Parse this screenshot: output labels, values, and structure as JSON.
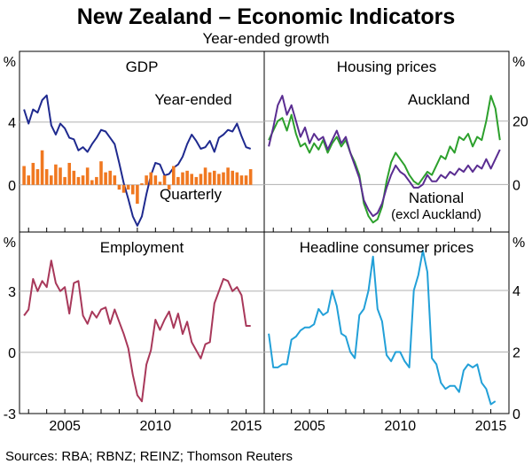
{
  "title": "New Zealand – Economic Indicators",
  "subtitle": "Year-ended growth",
  "source": "Sources:   RBA; RBNZ; REINZ; Thomson Reuters",
  "colors": {
    "navy": "#1f2a8f",
    "orange": "#f07820",
    "green": "#2ca02c",
    "purple": "#5a2d91",
    "maroon": "#a8385a",
    "cyan": "#22a0d8",
    "grid": "#b0b0b0"
  },
  "chart_data": [
    {
      "type": "line",
      "panel": "GDP",
      "title": "GDP",
      "xticks": [
        "2005",
        "2010",
        "2015"
      ],
      "xrange": [
        2002.5,
        2016.0
      ],
      "ylabel_left": "%",
      "yticks_left": [
        "4",
        "0"
      ],
      "ylim": [
        -3.0,
        8.5
      ],
      "series": [
        {
          "name": "Year-ended",
          "color": "#1f2a8f",
          "x": [
            2002.75,
            2003.0,
            2003.25,
            2003.5,
            2003.75,
            2004.0,
            2004.25,
            2004.5,
            2004.75,
            2005.0,
            2005.25,
            2005.5,
            2005.75,
            2006.0,
            2006.25,
            2006.5,
            2006.75,
            2007.0,
            2007.25,
            2007.5,
            2007.75,
            2008.0,
            2008.25,
            2008.5,
            2008.75,
            2009.0,
            2009.25,
            2009.5,
            2009.75,
            2010.0,
            2010.25,
            2010.5,
            2010.75,
            2011.0,
            2011.25,
            2011.5,
            2011.75,
            2012.0,
            2012.25,
            2012.5,
            2012.75,
            2013.0,
            2013.25,
            2013.5,
            2013.75,
            2014.0,
            2014.25,
            2014.5,
            2014.75,
            2015.0,
            2015.25
          ],
          "y": [
            4.8,
            3.9,
            4.8,
            4.6,
            5.4,
            5.7,
            3.8,
            3.2,
            3.9,
            3.6,
            3.0,
            2.9,
            2.2,
            2.4,
            2.1,
            2.6,
            3.0,
            3.5,
            3.4,
            3.0,
            2.6,
            1.4,
            0.1,
            -0.9,
            -2.0,
            -2.6,
            -2.0,
            -0.6,
            0.6,
            1.4,
            1.3,
            0.6,
            0.7,
            1.1,
            1.3,
            1.8,
            2.6,
            3.2,
            2.8,
            2.3,
            2.4,
            2.8,
            2.1,
            3.0,
            3.2,
            3.5,
            3.4,
            3.9,
            3.1,
            2.4,
            2.3
          ]
        },
        {
          "name": "Quarterly",
          "type": "bar",
          "color": "#f07820",
          "x": [
            2002.75,
            2003.0,
            2003.25,
            2003.5,
            2003.75,
            2004.0,
            2004.25,
            2004.5,
            2004.75,
            2005.0,
            2005.25,
            2005.5,
            2005.75,
            2006.0,
            2006.25,
            2006.5,
            2006.75,
            2007.0,
            2007.25,
            2007.5,
            2007.75,
            2008.0,
            2008.25,
            2008.5,
            2008.75,
            2009.0,
            2009.25,
            2009.5,
            2009.75,
            2010.0,
            2010.25,
            2010.5,
            2010.75,
            2011.0,
            2011.25,
            2011.5,
            2011.75,
            2012.0,
            2012.25,
            2012.5,
            2012.75,
            2013.0,
            2013.25,
            2013.5,
            2013.75,
            2014.0,
            2014.25,
            2014.5,
            2014.75,
            2015.0,
            2015.25
          ],
          "y": [
            1.2,
            0.6,
            1.4,
            1.0,
            2.2,
            1.0,
            0.6,
            1.3,
            1.1,
            0.5,
            1.4,
            0.9,
            0.5,
            0.6,
            1.1,
            0.3,
            0.5,
            1.5,
            0.8,
            0.9,
            0.6,
            -0.3,
            -0.5,
            -0.3,
            -0.6,
            -1.2,
            0.1,
            0.6,
            0.8,
            0.6,
            0.2,
            0.6,
            -0.3,
            1.2,
            0.5,
            0.8,
            0.9,
            0.7,
            0.5,
            0.7,
            1.1,
            0.8,
            0.9,
            0.7,
            0.8,
            1.1,
            0.9,
            0.8,
            0.6,
            0.6,
            1.0
          ]
        }
      ]
    },
    {
      "type": "line",
      "panel": "Housing prices",
      "title": "Housing prices",
      "xticks": [
        "2005",
        "2010",
        "2015"
      ],
      "xrange": [
        2002.5,
        2016.0
      ],
      "ylabel_right": "%",
      "yticks_right": [
        "20",
        "0"
      ],
      "ylim": [
        -15,
        42
      ],
      "series": [
        {
          "name": "Auckland",
          "color": "#2ca02c",
          "x": [
            2002.75,
            2003.0,
            2003.25,
            2003.5,
            2003.75,
            2004.0,
            2004.25,
            2004.5,
            2004.75,
            2005.0,
            2005.25,
            2005.5,
            2005.75,
            2006.0,
            2006.25,
            2006.5,
            2006.75,
            2007.0,
            2007.25,
            2007.5,
            2007.75,
            2008.0,
            2008.25,
            2008.5,
            2008.75,
            2009.0,
            2009.25,
            2009.5,
            2009.75,
            2010.0,
            2010.25,
            2010.5,
            2010.75,
            2011.0,
            2011.25,
            2011.5,
            2011.75,
            2012.0,
            2012.25,
            2012.5,
            2012.75,
            2013.0,
            2013.25,
            2013.5,
            2013.75,
            2014.0,
            2014.25,
            2014.5,
            2014.75,
            2015.0,
            2015.25,
            2015.5
          ],
          "y": [
            14,
            17,
            20,
            21,
            17,
            22,
            16,
            12,
            13,
            10,
            13,
            11,
            14,
            10,
            13,
            15,
            12,
            14,
            10,
            7,
            3,
            -6,
            -10,
            -12,
            -11,
            -7,
            1,
            7,
            10,
            8,
            6,
            3,
            1,
            0,
            2,
            4,
            3,
            6,
            9,
            8,
            12,
            10,
            15,
            14,
            16,
            12,
            15,
            14,
            20,
            28,
            24,
            14
          ]
        },
        {
          "name": "National",
          "sublabel": "(excl Auckland)",
          "color": "#5a2d91",
          "x": [
            2002.75,
            2003.0,
            2003.25,
            2003.5,
            2003.75,
            2004.0,
            2004.25,
            2004.5,
            2004.75,
            2005.0,
            2005.25,
            2005.5,
            2005.75,
            2006.0,
            2006.25,
            2006.5,
            2006.75,
            2007.0,
            2007.25,
            2007.5,
            2007.75,
            2008.0,
            2008.25,
            2008.5,
            2008.75,
            2009.0,
            2009.25,
            2009.5,
            2009.75,
            2010.0,
            2010.25,
            2010.5,
            2010.75,
            2011.0,
            2011.25,
            2011.5,
            2011.75,
            2012.0,
            2012.25,
            2012.5,
            2012.75,
            2013.0,
            2013.25,
            2013.5,
            2013.75,
            2014.0,
            2014.25,
            2014.5,
            2014.75,
            2015.0,
            2015.25,
            2015.5
          ],
          "y": [
            12,
            18,
            25,
            28,
            22,
            25,
            20,
            15,
            18,
            13,
            16,
            14,
            15,
            11,
            14,
            17,
            13,
            15,
            10,
            6,
            2,
            -5,
            -8,
            -10,
            -9,
            -6,
            -1,
            3,
            6,
            4,
            3,
            1,
            -1,
            -1,
            0,
            3,
            1,
            1,
            3,
            2,
            4,
            3,
            5,
            4,
            6,
            4,
            6,
            5,
            8,
            5,
            8,
            11
          ]
        }
      ]
    },
    {
      "type": "line",
      "panel": "Employment",
      "title": "Employment",
      "xticks": [
        "2005",
        "2010",
        "2015"
      ],
      "xrange": [
        2002.5,
        2016.0
      ],
      "ylabel_left": "%",
      "yticks_left": [
        "3",
        "0",
        "-3"
      ],
      "ylim": [
        -3,
        5.9
      ],
      "series": [
        {
          "name": "Employment",
          "color": "#a8385a",
          "x": [
            2002.75,
            2003.0,
            2003.25,
            2003.5,
            2003.75,
            2004.0,
            2004.25,
            2004.5,
            2004.75,
            2005.0,
            2005.25,
            2005.5,
            2005.75,
            2006.0,
            2006.25,
            2006.5,
            2006.75,
            2007.0,
            2007.25,
            2007.5,
            2007.75,
            2008.0,
            2008.25,
            2008.5,
            2008.75,
            2009.0,
            2009.25,
            2009.5,
            2009.75,
            2010.0,
            2010.25,
            2010.5,
            2010.75,
            2011.0,
            2011.25,
            2011.5,
            2011.75,
            2012.0,
            2012.25,
            2012.5,
            2012.75,
            2013.0,
            2013.25,
            2013.5,
            2013.75,
            2014.0,
            2014.25,
            2014.5,
            2014.75,
            2015.0,
            2015.25
          ],
          "y": [
            1.8,
            2.1,
            3.6,
            3.0,
            3.5,
            3.2,
            4.5,
            3.4,
            3.0,
            3.2,
            1.9,
            3.4,
            3.5,
            1.8,
            1.4,
            2.0,
            1.7,
            2.1,
            2.2,
            1.4,
            2.1,
            1.5,
            0.9,
            0.2,
            -1.1,
            -2.1,
            -2.4,
            -0.6,
            0.1,
            1.6,
            1.1,
            1.6,
            2.0,
            1.2,
            1.9,
            0.9,
            1.5,
            0.5,
            0.1,
            -0.3,
            0.4,
            0.5,
            2.4,
            3.0,
            3.6,
            3.5,
            3.0,
            3.2,
            2.8,
            1.3,
            1.3
          ]
        }
      ]
    },
    {
      "type": "line",
      "panel": "Headline consumer prices",
      "title": "Headline consumer prices",
      "xticks": [
        "2005",
        "2010",
        "2015"
      ],
      "xrange": [
        2002.5,
        2016.0
      ],
      "ylabel_right": "%",
      "yticks_right": [
        "4",
        "2",
        "0"
      ],
      "ylim": [
        0,
        5.9
      ],
      "series": [
        {
          "name": "Headline consumer prices",
          "color": "#22a0d8",
          "x": [
            2002.75,
            2003.0,
            2003.25,
            2003.5,
            2003.75,
            2004.0,
            2004.25,
            2004.5,
            2004.75,
            2005.0,
            2005.25,
            2005.5,
            2005.75,
            2006.0,
            2006.25,
            2006.5,
            2006.75,
            2007.0,
            2007.25,
            2007.5,
            2007.75,
            2008.0,
            2008.25,
            2008.5,
            2008.75,
            2009.0,
            2009.25,
            2009.5,
            2009.75,
            2010.0,
            2010.25,
            2010.5,
            2010.75,
            2011.0,
            2011.25,
            2011.5,
            2011.75,
            2012.0,
            2012.25,
            2012.5,
            2012.75,
            2013.0,
            2013.25,
            2013.5,
            2013.75,
            2014.0,
            2014.25,
            2014.5,
            2014.75,
            2015.0,
            2015.25
          ],
          "y": [
            2.6,
            1.5,
            1.5,
            1.6,
            1.6,
            2.4,
            2.5,
            2.7,
            2.8,
            2.8,
            2.9,
            3.4,
            3.2,
            3.3,
            4.0,
            3.5,
            2.6,
            2.5,
            2.0,
            1.8,
            3.2,
            3.4,
            4.0,
            5.1,
            3.4,
            3.0,
            1.9,
            1.7,
            2.0,
            2.0,
            1.7,
            1.5,
            4.0,
            4.5,
            5.3,
            4.6,
            1.8,
            1.6,
            1.0,
            0.8,
            0.9,
            0.9,
            0.7,
            1.4,
            1.6,
            1.5,
            1.6,
            1.0,
            0.8,
            0.3,
            0.4
          ]
        }
      ]
    }
  ]
}
